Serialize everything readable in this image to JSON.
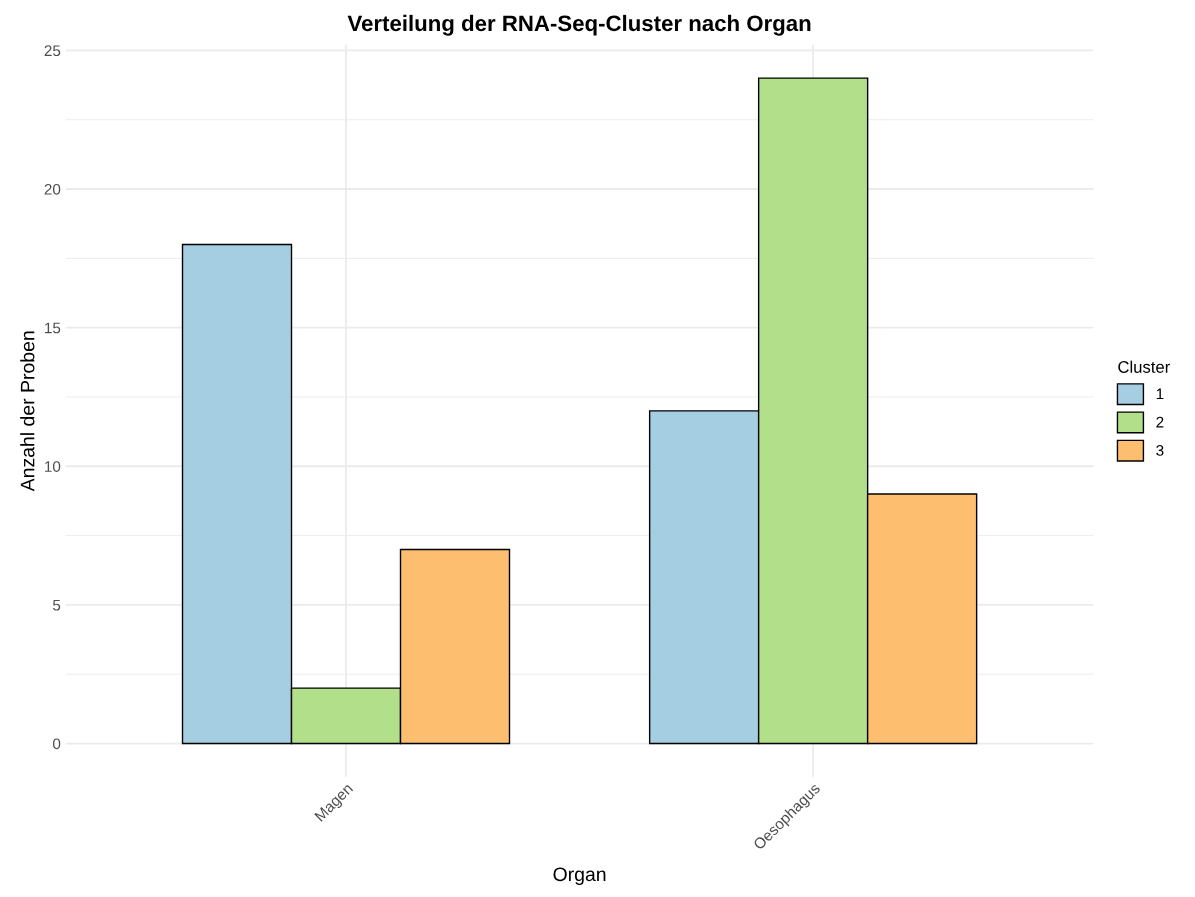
{
  "chart_data": {
    "type": "bar",
    "title": "Verteilung der RNA-Seq-Cluster nach Organ",
    "xlabel": "Organ",
    "ylabel": "Anzahl der Proben",
    "legend_title": "Cluster",
    "categories": [
      "Magen",
      "Oesophagus"
    ],
    "series": [
      {
        "name": "1",
        "color": "#a6cee3",
        "values": [
          18,
          12
        ]
      },
      {
        "name": "2",
        "color": "#b2df8a",
        "values": [
          2,
          24
        ]
      },
      {
        "name": "3",
        "color": "#fdbf6f",
        "values": [
          7,
          9
        ]
      }
    ],
    "ylim": [
      -1.2,
      25.2
    ],
    "yticks": [
      0,
      {
        "value": 2.5,
        "label": null
      },
      5,
      {
        "value": 7.5,
        "label": null
      },
      10,
      {
        "value": 12.5,
        "label": null
      },
      15,
      {
        "value": 17.5,
        "label": null
      },
      20,
      {
        "value": 22.5,
        "label": null
      },
      25
    ],
    "grid": true,
    "legend": "right"
  }
}
